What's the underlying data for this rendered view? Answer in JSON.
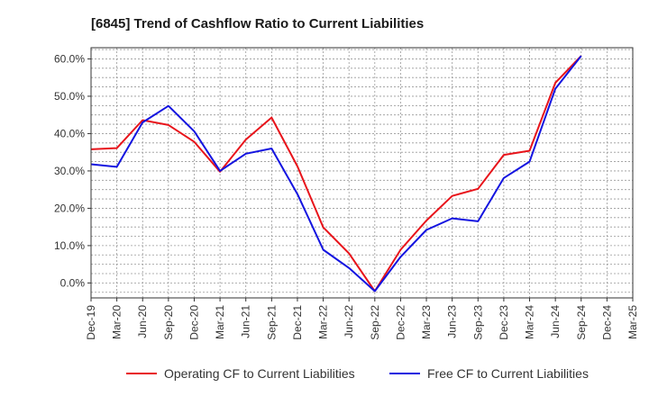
{
  "chart_data": {
    "type": "line",
    "title": "[6845]  Trend of Cashflow Ratio to Current Liabilities",
    "xlabel": "",
    "ylabel": "",
    "x": [
      "Dec-19",
      "Mar-20",
      "Jun-20",
      "Sep-20",
      "Dec-20",
      "Mar-21",
      "Jun-21",
      "Sep-21",
      "Dec-21",
      "Mar-22",
      "Jun-22",
      "Sep-22",
      "Dec-22",
      "Mar-23",
      "Jun-23",
      "Sep-23",
      "Dec-23",
      "Mar-24",
      "Jun-24",
      "Sep-24",
      "Dec-24",
      "Mar-25"
    ],
    "x_ticks": [
      "Dec-19",
      "Mar-20",
      "Jun-20",
      "Sep-20",
      "Dec-20",
      "Mar-21",
      "Jun-21",
      "Sep-21",
      "Dec-21",
      "Mar-22",
      "Jun-22",
      "Sep-22",
      "Dec-22",
      "Mar-23",
      "Jun-23",
      "Sep-23",
      "Dec-23",
      "Mar-24",
      "Jun-24",
      "Sep-24",
      "Dec-24",
      "Mar-25"
    ],
    "y_ticks": [
      "0.0%",
      "10.0%",
      "20.0%",
      "30.0%",
      "40.0%",
      "50.0%",
      "60.0%"
    ],
    "y_tick_values": [
      0,
      10,
      20,
      30,
      40,
      50,
      60
    ],
    "ylim": [
      -4,
      63
    ],
    "grid": true,
    "legend_position": "bottom",
    "series": [
      {
        "name": "Operating CF to Current Liabilities",
        "color": "#e8141b",
        "values": [
          35.8,
          36.1,
          43.6,
          42.3,
          37.8,
          29.8,
          38.4,
          44.3,
          31.2,
          14.9,
          7.9,
          -2.2,
          8.9,
          16.7,
          23.3,
          25.2,
          34.3,
          35.4,
          53.6,
          60.8,
          null,
          null
        ]
      },
      {
        "name": "Free CF to Current Liabilities",
        "color": "#1414e0",
        "values": [
          31.8,
          31.1,
          43.0,
          47.4,
          40.6,
          30.0,
          34.6,
          36.0,
          23.8,
          8.9,
          4.0,
          -2.2,
          7.0,
          14.2,
          17.3,
          16.5,
          28.1,
          32.5,
          52.0,
          60.8,
          null,
          null
        ]
      }
    ]
  }
}
